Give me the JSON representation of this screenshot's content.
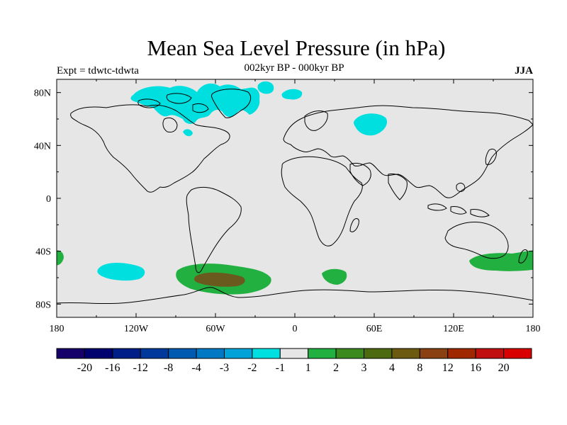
{
  "header": {
    "title": "Mean Sea Level Pressure (in hPa)",
    "experiment": "Expt = tdwtc-tdwta",
    "period": "002kyr BP - 000kyr BP",
    "season": "JJA"
  },
  "map": {
    "projection": "cylindrical equidistant",
    "lon_range": [
      -180,
      180
    ],
    "lat_range": [
      -90,
      90
    ],
    "background_color": "#e6e6e6",
    "coastline_color": "#000000",
    "x_ticks": [
      "180",
      "120W",
      "60W",
      "0",
      "60E",
      "120E",
      "180"
    ],
    "y_ticks": [
      "80N",
      "40N",
      "0",
      "40S",
      "80S"
    ],
    "anomaly_regions": [
      {
        "name": "arctic-canada-greenland",
        "class": "-1 to -2",
        "color": "#00dfdf"
      },
      {
        "name": "northern-russia",
        "class": "-1 to -2",
        "color": "#00dfdf"
      },
      {
        "name": "south-pacific",
        "class": "-1 to -2",
        "color": "#00dfdf"
      },
      {
        "name": "south-atlantic-drake",
        "class": "1 to 2",
        "color": "#22b040"
      },
      {
        "name": "south-atlantic-core",
        "class": "4 to 8",
        "color": "#6b5a1d"
      },
      {
        "name": "south-of-africa",
        "class": "1 to 2",
        "color": "#22b040"
      },
      {
        "name": "south-of-australia",
        "class": "1 to 2",
        "color": "#22b040"
      },
      {
        "name": "new-zealand-west",
        "class": "1 to 2",
        "color": "#22b040"
      }
    ]
  },
  "colorbar": {
    "labels": [
      "-20",
      "-16",
      "-12",
      "-8",
      "-4",
      "-3",
      "-2",
      "-1",
      "1",
      "2",
      "3",
      "4",
      "8",
      "12",
      "16",
      "20"
    ],
    "colors": [
      "#16006a",
      "#00006e",
      "#001e88",
      "#00389c",
      "#005ab0",
      "#0078c4",
      "#00a2d8",
      "#00e0e0",
      "#e6e6e6",
      "#22b040",
      "#3b8a1e",
      "#4c6a10",
      "#6b5a10",
      "#8a4010",
      "#a02800",
      "#c01010",
      "#d80000"
    ]
  }
}
